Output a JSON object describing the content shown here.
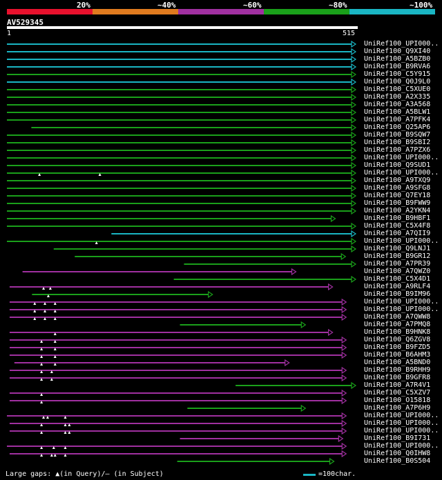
{
  "legend": [
    {
      "label": "20%",
      "color": "#e8112d"
    },
    {
      "label": "~40%",
      "color": "#e07b1f"
    },
    {
      "label": "~60%",
      "color": "#a030a0"
    },
    {
      "label": "~80%",
      "color": "#1aa01a"
    },
    {
      "label": "~100%",
      "color": "#1ab6c4"
    }
  ],
  "query": {
    "name": "AV529345",
    "start": "1",
    "end": "515",
    "length": 515
  },
  "footer": {
    "text": "Large gaps: ▲(in Query)/– (in Subject)",
    "scale_label": "=100char."
  },
  "hits": [
    {
      "name": "UniRef100_UPI000..",
      "color": "#1ab6c4",
      "start": 1,
      "end": 515
    },
    {
      "name": "UniRef100_Q9XI40",
      "color": "#1ab6c4",
      "start": 1,
      "end": 515
    },
    {
      "name": "UniRef100_A5BZB0",
      "color": "#1ab6c4",
      "start": 1,
      "end": 515
    },
    {
      "name": "UniRef100_B9RVA6",
      "color": "#1ab6c4",
      "start": 1,
      "end": 515
    },
    {
      "name": "UniRef100_C5Y915",
      "color": "#1aa01a",
      "start": 1,
      "end": 515
    },
    {
      "name": "UniRef100_Q0J9L0",
      "color": "#1ab6c4",
      "start": 1,
      "end": 515
    },
    {
      "name": "UniRef100_C5XUE0",
      "color": "#1aa01a",
      "start": 1,
      "end": 515
    },
    {
      "name": "UniRef100_A2X335",
      "color": "#1aa01a",
      "start": 1,
      "end": 515
    },
    {
      "name": "UniRef100_A3A568",
      "color": "#1aa01a",
      "start": 1,
      "end": 515
    },
    {
      "name": "UniRef100_A5BLW1",
      "color": "#1aa01a",
      "start": 1,
      "end": 515
    },
    {
      "name": "UniRef100_A7PFK4",
      "color": "#1aa01a",
      "start": 1,
      "end": 515
    },
    {
      "name": "UniRef100_Q25AP6",
      "color": "#1aa01a",
      "start": 37,
      "end": 515
    },
    {
      "name": "UniRef100_B9SQW7",
      "color": "#1aa01a",
      "start": 1,
      "end": 515
    },
    {
      "name": "UniRef100_B9SBI2",
      "color": "#1aa01a",
      "start": 1,
      "end": 515
    },
    {
      "name": "UniRef100_A7PZX6",
      "color": "#1aa01a",
      "start": 1,
      "end": 515
    },
    {
      "name": "UniRef100_UPI000..",
      "color": "#1aa01a",
      "start": 1,
      "end": 515
    },
    {
      "name": "UniRef100_Q9SUD1",
      "color": "#1aa01a",
      "start": 1,
      "end": 515
    },
    {
      "name": "UniRef100_UPI000..",
      "color": "#1aa01a",
      "start": 1,
      "end": 515,
      "tris": [
        49,
        138
      ]
    },
    {
      "name": "UniRef100_A9TXQ9",
      "color": "#1aa01a",
      "start": 1,
      "end": 515
    },
    {
      "name": "UniRef100_A9SFG8",
      "color": "#1aa01a",
      "start": 1,
      "end": 515
    },
    {
      "name": "UniRef100_Q7EY18",
      "color": "#1aa01a",
      "start": 1,
      "end": 515
    },
    {
      "name": "UniRef100_B9FWW9",
      "color": "#1aa01a",
      "start": 1,
      "end": 515
    },
    {
      "name": "UniRef100_A2YKN4",
      "color": "#1aa01a",
      "start": 1,
      "end": 515
    },
    {
      "name": "UniRef100_B9HBF1",
      "color": "#1aa01a",
      "start": 1,
      "end": 485
    },
    {
      "name": "UniRef100_C5X4F8",
      "color": "#1aa01a",
      "start": 1,
      "end": 515
    },
    {
      "name": "UniRef100_A7QII9",
      "color": "#1ab6c4",
      "start": 155,
      "end": 515
    },
    {
      "name": "UniRef100_UPI000..",
      "color": "#1aa01a",
      "start": 1,
      "end": 515,
      "tris": [
        133
      ]
    },
    {
      "name": "UniRef100_Q9LNJ1",
      "color": "#1aa01a",
      "start": 70,
      "end": 515
    },
    {
      "name": "UniRef100_B9GR12",
      "color": "#1aa01a",
      "start": 101,
      "end": 500
    },
    {
      "name": "UniRef100_A7PR39",
      "color": "#1aa01a",
      "start": 262,
      "end": 515
    },
    {
      "name": "UniRef100_A7QWZ0",
      "color": "#a030a0",
      "start": 24,
      "end": 427
    },
    {
      "name": "UniRef100_C5X4D1",
      "color": "#1aa01a",
      "start": 247,
      "end": 515
    },
    {
      "name": "UniRef100_A9RLF4",
      "color": "#a030a0",
      "start": 5,
      "end": 481,
      "tris": [
        55,
        65
      ]
    },
    {
      "name": "UniRef100_B9IM96",
      "color": "#1aa01a",
      "start": 38,
      "end": 304,
      "tris": [
        62
      ]
    },
    {
      "name": "UniRef100_UPI000..",
      "color": "#a030a0",
      "start": 5,
      "end": 501,
      "tris": [
        42,
        57,
        72
      ]
    },
    {
      "name": "UniRef100_UPI000..",
      "color": "#a030a0",
      "start": 5,
      "end": 501,
      "tris": [
        42,
        57,
        72
      ]
    },
    {
      "name": "UniRef100_A7QWW8",
      "color": "#a030a0",
      "start": 5,
      "end": 501,
      "tris": [
        42,
        57,
        72
      ]
    },
    {
      "name": "UniRef100_A7PMQ8",
      "color": "#1aa01a",
      "start": 256,
      "end": 441
    },
    {
      "name": "UniRef100_B9HNK8",
      "color": "#a030a0",
      "start": 5,
      "end": 481,
      "tris": [
        72
      ]
    },
    {
      "name": "UniRef100_Q6ZGV8",
      "color": "#a030a0",
      "start": 5,
      "end": 501,
      "tris": [
        52,
        72
      ]
    },
    {
      "name": "UniRef100_B9FZD5",
      "color": "#a030a0",
      "start": 5,
      "end": 501,
      "tris": [
        52,
        72
      ]
    },
    {
      "name": "UniRef100_B6AHM3",
      "color": "#a030a0",
      "start": 5,
      "end": 501,
      "tris": [
        52,
        72
      ]
    },
    {
      "name": "UniRef100_A5BND0",
      "color": "#a030a0",
      "start": 12,
      "end": 417,
      "tris": [
        52,
        72
      ]
    },
    {
      "name": "UniRef100_B9RHH9",
      "color": "#a030a0",
      "start": 5,
      "end": 501,
      "tris": [
        52,
        67
      ]
    },
    {
      "name": "UniRef100_B9GFR8",
      "color": "#a030a0",
      "start": 5,
      "end": 501,
      "tris": [
        52,
        67
      ]
    },
    {
      "name": "UniRef100_A7R4V1",
      "color": "#1aa01a",
      "start": 338,
      "end": 515
    },
    {
      "name": "UniRef100_C5XZV7",
      "color": "#a030a0",
      "start": 5,
      "end": 501,
      "tris": [
        52
      ]
    },
    {
      "name": "UniRef100_O15818",
      "color": "#a030a0",
      "start": 5,
      "end": 501,
      "tris": [
        52
      ]
    },
    {
      "name": "UniRef100_A7P6H9",
      "color": "#1aa01a",
      "start": 267,
      "end": 441
    },
    {
      "name": "UniRef100_UPI000..",
      "color": "#a030a0",
      "start": 1,
      "end": 501,
      "tris": [
        55,
        61,
        87
      ]
    },
    {
      "name": "UniRef100_UPI000..",
      "color": "#a030a0",
      "start": 5,
      "end": 501,
      "tris": [
        52,
        87,
        93
      ]
    },
    {
      "name": "UniRef100_UPI000..",
      "color": "#a030a0",
      "start": 5,
      "end": 501,
      "tris": [
        52,
        87,
        93
      ]
    },
    {
      "name": "UniRef100_B9I731",
      "color": "#a030a0",
      "start": 256,
      "end": 496
    },
    {
      "name": "UniRef100_UPI000..",
      "color": "#a030a0",
      "start": 1,
      "end": 501,
      "tris": [
        52,
        70,
        87
      ]
    },
    {
      "name": "UniRef100_Q0IHW8",
      "color": "#a030a0",
      "start": 5,
      "end": 501,
      "tris": [
        52,
        67,
        72,
        87
      ]
    },
    {
      "name": "UniRef100_B0S504",
      "color": "#1aa01a",
      "start": 252,
      "end": 483
    }
  ]
}
